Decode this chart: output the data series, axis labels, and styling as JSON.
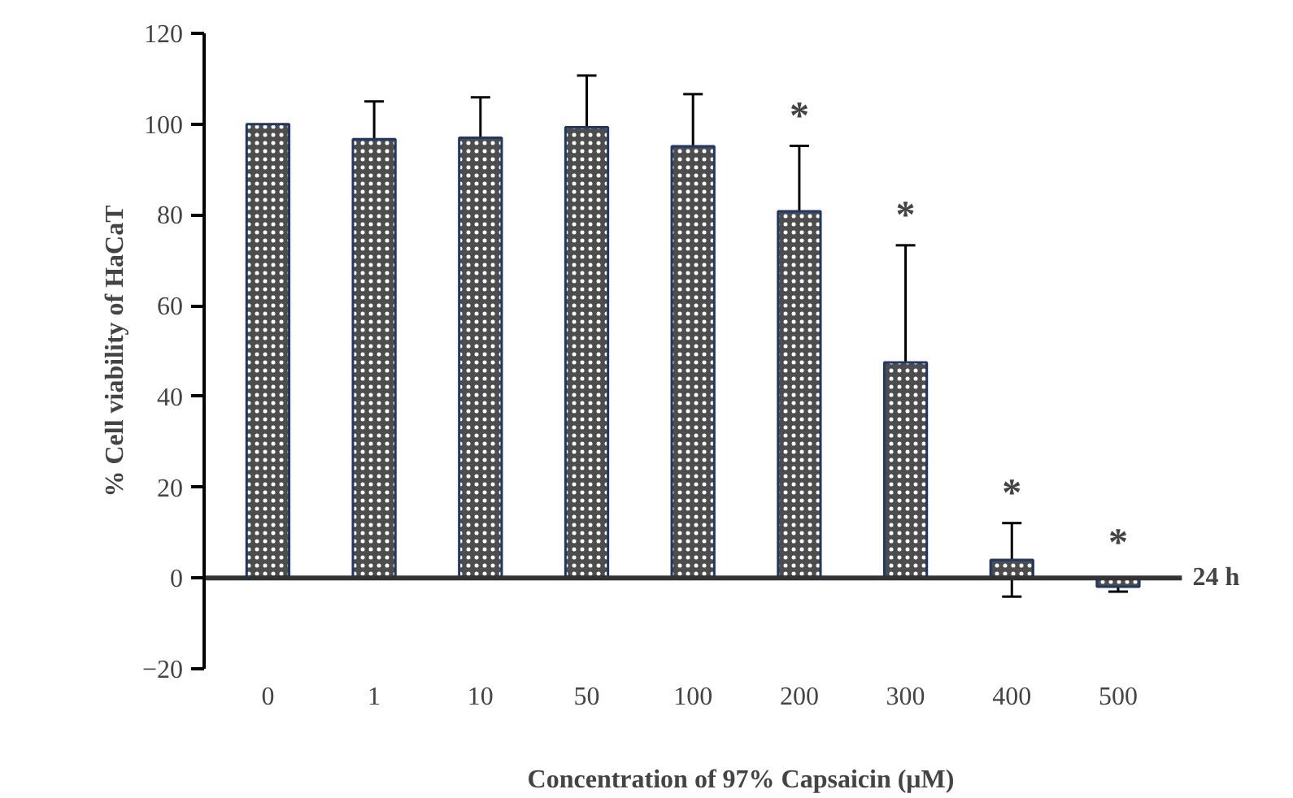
{
  "chart_data": {
    "type": "bar",
    "xlabel": "Concentration of 97% Capsaicin (μM)",
    "ylabel": "% Cell viability of HaCaT",
    "categories": [
      "0",
      "1",
      "10",
      "50",
      "100",
      "200",
      "300",
      "400",
      "500"
    ],
    "values": [
      100,
      96.7,
      97.0,
      99.3,
      95.1,
      80.8,
      47.5,
      4.0,
      -1.9
    ],
    "errors": [
      null,
      8.3,
      8.9,
      11.4,
      11.5,
      14.4,
      25.8,
      8.1,
      1.1
    ],
    "color": "#4d4d4d",
    "ylim": [
      -20,
      120
    ],
    "yticks": [
      -20,
      0,
      20,
      40,
      60,
      80,
      100,
      120
    ],
    "grid": false,
    "ref_lines": [
      {
        "axis": "y",
        "value": 0,
        "color": "#333333"
      }
    ],
    "annotations": [
      "*",
      "*",
      "*",
      "*",
      "24 h"
    ]
  }
}
